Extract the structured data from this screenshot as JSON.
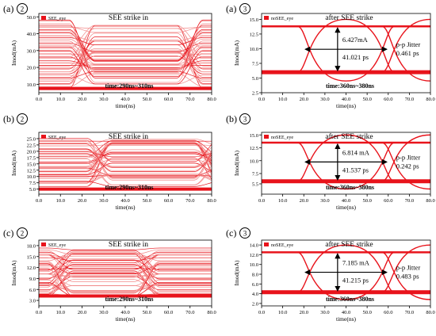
{
  "chart_data": [
    {
      "type": "line",
      "panel": "(a)",
      "marker": "2",
      "legend": "SEE_eye",
      "title": "SEE strike in",
      "ylabel": "Imod(mA)",
      "xlabel": "time(ns)",
      "window": "time:290ns~310ns",
      "xlim": [
        0,
        80
      ],
      "xticks": [
        "0.0",
        "10.0",
        "20.0",
        "30.0",
        "40.0",
        "50.0",
        "60.0",
        "70.0",
        "80.0"
      ],
      "ylim": [
        5,
        52
      ],
      "yticks": [
        "10.0",
        "20.0",
        "30.0",
        "40.0",
        "50.0"
      ],
      "band": [
        8,
        48
      ],
      "low_level": 7.5,
      "crossings": [
        20,
        70
      ]
    },
    {
      "type": "line",
      "panel": "(a)",
      "marker": "3",
      "legend": "noSEE_eye",
      "title": "after SEE strike",
      "ylabel": "Imod(mA)",
      "xlabel": "time(ns)",
      "window": "time:360ns~380ns",
      "xlim": [
        0,
        80
      ],
      "xticks": [
        "0.0",
        "10.0",
        "20.0",
        "30.0",
        "40.0",
        "50.0",
        "60.0",
        "70.0",
        "80.0"
      ],
      "ylim": [
        2.5,
        16
      ],
      "yticks": [
        "2.5",
        "5.0",
        "7.5",
        "10.0",
        "12.5",
        "15.0"
      ],
      "high_level": 13.8,
      "low_level": 6.0,
      "eye_max": 15.0,
      "eye_min": 4.5,
      "crossings": [
        20,
        60
      ],
      "annotations": {
        "amplitude": "6.427mA",
        "jitter_label": "p-p Jitter",
        "jitter_value": "0.461 ps",
        "width": "41.021 ps"
      }
    },
    {
      "type": "line",
      "panel": "(b)",
      "marker": "2",
      "legend": "SEE_eye",
      "title": "SEE strike in",
      "ylabel": "Imod(mA)",
      "xlabel": "time(ns)",
      "window": "time:290ns~310ns",
      "xlim": [
        0,
        80
      ],
      "xticks": [
        "0.0",
        "10.0",
        "20.0",
        "30.0",
        "40.0",
        "50.0",
        "60.0",
        "70.0",
        "80.0"
      ],
      "ylim": [
        3,
        27.5
      ],
      "yticks": [
        "5.0",
        "7.5",
        "10.0",
        "12.5",
        "15.0",
        "17.5",
        "20.0",
        "22.5",
        "25.0"
      ],
      "band": [
        6,
        25
      ],
      "low_level": 5.0,
      "crossings": [
        28,
        78
      ]
    },
    {
      "type": "line",
      "panel": "(b)",
      "marker": "3",
      "legend": "noSEE_eye",
      "title": "after SEE strike",
      "ylabel": "Imod(mA)",
      "xlabel": "time(ns)",
      "window": "time:360ns~380ns",
      "xlim": [
        0,
        80
      ],
      "xticks": [
        "0.0",
        "10.0",
        "20.0",
        "30.0",
        "40.0",
        "50.0",
        "60.0",
        "70.0",
        "80.0"
      ],
      "ylim": [
        3.5,
        15.5
      ],
      "yticks": [
        "5.5",
        "7.5",
        "10.0",
        "12.5",
        "15.0"
      ],
      "high_level": 13.5,
      "low_level": 6.0,
      "eye_max": 15.0,
      "eye_min": 4.5,
      "crossings": [
        20,
        60
      ],
      "annotations": {
        "amplitude": "6.814 mA",
        "jitter_label": "p-p Jitter",
        "jitter_value": "0.242 ps",
        "width": "41.537 ps"
      }
    },
    {
      "type": "line",
      "panel": "(c)",
      "marker": "2",
      "legend": "SEE_eye",
      "title": "SEE strike in",
      "ylabel": "Imod(mA)",
      "xlabel": "time(ns)",
      "window": "time:290ns~310ns",
      "xlim": [
        0,
        80
      ],
      "xticks": [
        "0.0",
        "10.0",
        "20.0",
        "30.0",
        "40.0",
        "50.0",
        "60.0",
        "70.0",
        "80.0"
      ],
      "ylim": [
        1.5,
        19.5
      ],
      "yticks": [
        "3.0",
        "6.0",
        "9.0",
        "12.0",
        "15.0",
        "18.0"
      ],
      "band": [
        4,
        17
      ],
      "low_level": 4.2,
      "crossings": [
        10,
        50
      ]
    },
    {
      "type": "line",
      "panel": "(c)",
      "marker": "3",
      "legend": "noSEE_eye",
      "title": "after SEE strike",
      "ylabel": "Imod(mA)",
      "xlabel": "time(ns)",
      "window": "time:360ns~380ns",
      "xlim": [
        0,
        80
      ],
      "xticks": [
        "0.0",
        "10.0",
        "20.0",
        "30.0",
        "40.0",
        "50.0",
        "60.0",
        "70.0",
        "80.0"
      ],
      "ylim": [
        1.5,
        15
      ],
      "yticks": [
        "2.0",
        "4.0",
        "6.0",
        "8.0",
        "10.0",
        "12.0",
        "14.0"
      ],
      "high_level": 12.5,
      "low_level": 4.3,
      "eye_max": 14.0,
      "eye_min": 2.8,
      "crossings": [
        20,
        60
      ],
      "annotations": {
        "amplitude": "7.185 mA",
        "jitter_label": "p-p Jitter",
        "jitter_value": "0.483 ps",
        "width": "41.215 ps"
      }
    }
  ]
}
